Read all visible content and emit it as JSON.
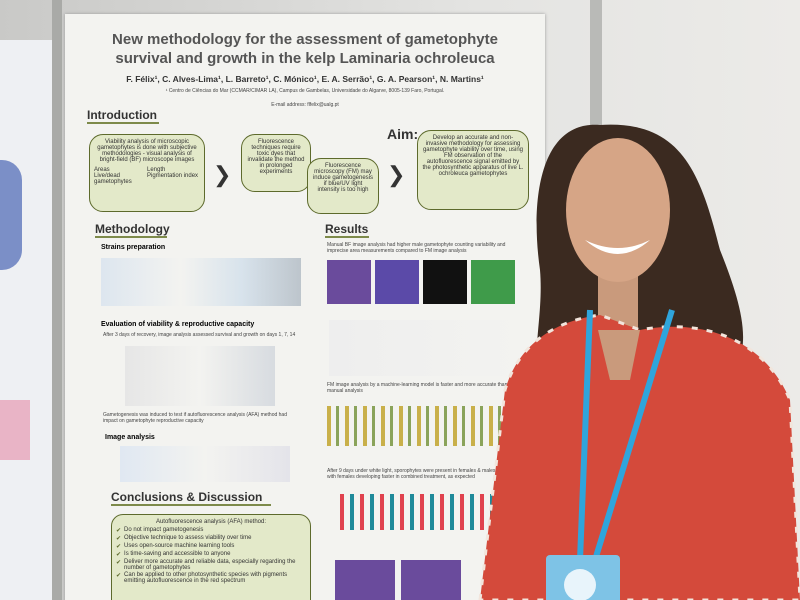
{
  "poster": {
    "title": "New methodology for the assessment of gametophyte survival and growth in the kelp Laminaria ochroleuca",
    "authors": "F. Félix¹, C. Alves-Lima¹, L. Barreto¹, C. Mónico¹, E. A. Serrão¹, G. A. Pearson¹, N. Martins¹",
    "affiliation": "¹ Centro de Ciências do Mar (CCMAR/CIMAR LA), Campus de Gambelas, Universidade do Algarve, 8005-139 Faro, Portugal.",
    "email": "E-mail address: flfelix@ualg.pt",
    "introduction": {
      "heading": "Introduction",
      "box1": "Viability analysis of microscopic gametophytes is done with subjective methodologies - visual analysis of bright-field (BF) microscope images",
      "box1_items": [
        "Areas",
        "Length",
        "Live/dead gametophytes",
        "Pigmentation index"
      ],
      "box2": "Fluorescence techniques require toxic dyes that invalidate the method in prolonged experiments",
      "box3": "Fluorescence microscopy (FM) may induce gametogenesis if blue/UV light intensity is too high",
      "aim_heading": "Aim:",
      "aim": "Develop an accurate and non-invasive methodology for assessing gametophyte viability over time, using FM observation of the autofluorescence signal emitted by the photosynthetic apparatus of live L. ochroleuca gametophytes"
    },
    "methodology": {
      "heading": "Methodology",
      "steps": [
        "Strains preparation",
        "Evaluation of viability & reproductive capacity",
        "Image analysis"
      ],
      "note": "After 3 days of recovery, image analysis assessed survival and growth on days 1, 7, 14",
      "gametogenesis": "Gametogenesis was induced to test if autofluorescence analysis (AFA) method had impact on gametophyte reproductive capacity"
    },
    "results": {
      "heading": "Results",
      "bullets": [
        "Manual BF image analysis had higher male gametophyte counting variability and imprecise area measurements compared to FM image analysis",
        "FM image analysis by a machine-learning model is faster and more accurate than manual analysis",
        "After 9 days under white light, sporophytes were present in females & males dishes, with females developing faster in combined treatment, as expected"
      ]
    },
    "conclusions": {
      "heading": "Conclusions & Discussion",
      "box_title": "Autofluorescence analysis (AFA) method:",
      "items": [
        "Do not impact gametogenesis",
        "Objective technique to assess viability over time",
        "Uses open-source machine learning tools",
        "Is time-saving and accessible to anyone",
        "Deliver more accurate and reliable data, especially regarding the number of gametophytes",
        "Can be applied to other photosynthetic species with pigments emitting autofluorescence in the red spectrum"
      ]
    }
  }
}
